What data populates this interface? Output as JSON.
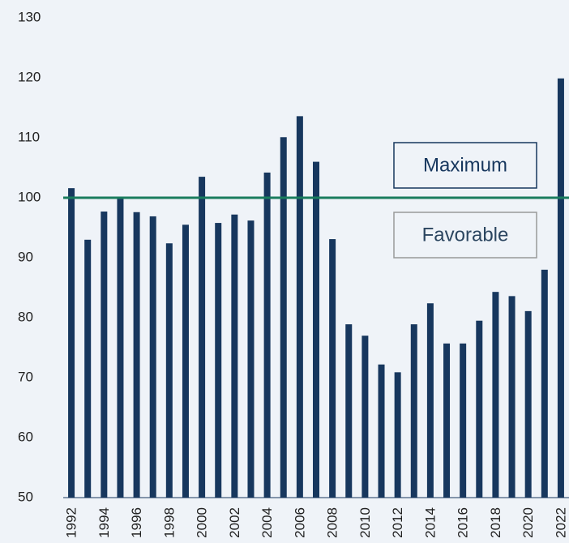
{
  "chart_data": {
    "type": "bar",
    "categories": [
      "1992",
      null,
      "1994",
      null,
      "1996",
      null,
      "1998",
      null,
      "2000",
      null,
      "2002",
      null,
      "2004",
      null,
      "2006",
      null,
      "2008",
      null,
      "2010",
      null,
      "2012",
      null,
      "2014",
      null,
      "2016",
      null,
      "2018",
      null,
      "2020",
      null,
      "2022"
    ],
    "values": [
      101.6,
      93,
      97.7,
      100,
      97.6,
      96.9,
      92.4,
      95.5,
      103.5,
      95.8,
      97.2,
      96.2,
      104.2,
      110.1,
      113.6,
      106,
      93.1,
      78.9,
      77,
      72.2,
      70.9,
      78.9,
      82.4,
      75.7,
      75.7,
      79.5,
      84.3,
      83.6,
      81.1,
      88,
      119.9
    ],
    "color": "#17375e",
    "ylim": [
      50,
      130
    ],
    "yticks": [
      50,
      60,
      70,
      80,
      90,
      100,
      110,
      120,
      130
    ],
    "grid": false,
    "reference_line": {
      "value": 100,
      "color": "#1a7d5e"
    },
    "annotations": [
      "Maximum",
      "Favorable"
    ]
  }
}
